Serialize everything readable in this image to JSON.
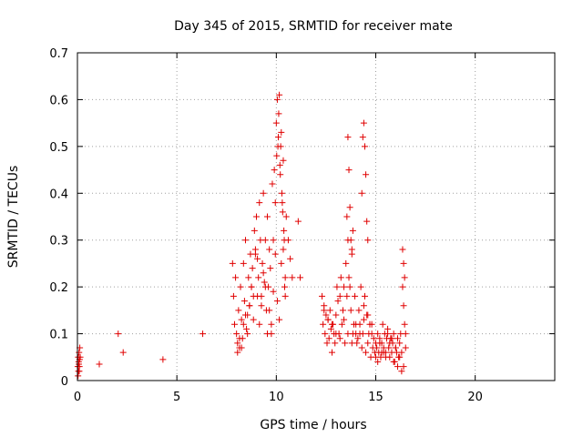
{
  "chart_data": {
    "type": "scatter",
    "title": "Day 345 of 2015, SRMTID for receiver mate",
    "xlabel": "GPS time / hours",
    "ylabel": "SRMTID / TECUs",
    "xlim": [
      0,
      24
    ],
    "ylim": [
      0,
      0.7
    ],
    "xticks": [
      0,
      5,
      10,
      15,
      20
    ],
    "yticks": [
      0,
      0.1,
      0.2,
      0.3,
      0.4,
      0.5,
      0.6,
      0.7
    ],
    "xtick_labels": [
      "0",
      "5",
      "10",
      "15",
      "20"
    ],
    "ytick_labels": [
      "0",
      "0.1",
      "0.2",
      "0.3",
      "0.4",
      "0.5",
      "0.6",
      "0.7"
    ],
    "grid": true,
    "marker": "plus",
    "color": "#e00000",
    "x": [
      0.02,
      0.04,
      0.05,
      0.06,
      0.08,
      0.1,
      0.12,
      0.14,
      0.03,
      0.07,
      0.09,
      0.11,
      1.1,
      2.05,
      2.3,
      4.3,
      6.3,
      7.8,
      7.85,
      7.9,
      7.95,
      8.0,
      8.05,
      8.1,
      8.15,
      8.2,
      8.25,
      8.3,
      8.35,
      8.4,
      8.45,
      8.5,
      8.55,
      8.6,
      8.65,
      8.7,
      8.75,
      8.8,
      8.85,
      8.9,
      8.95,
      9.0,
      9.05,
      9.1,
      9.15,
      9.2,
      9.25,
      9.3,
      9.35,
      9.4,
      9.45,
      9.5,
      9.55,
      9.6,
      9.65,
      9.7,
      9.75,
      9.8,
      9.85,
      9.9,
      9.95,
      10.0,
      10.02,
      10.05,
      10.08,
      10.1,
      10.12,
      10.15,
      10.18,
      10.2,
      10.22,
      10.25,
      10.28,
      10.3,
      10.32,
      10.35,
      10.38,
      10.4,
      10.42,
      10.45,
      10.5,
      10.6,
      10.7,
      10.8,
      11.1,
      11.2,
      8.05,
      8.15,
      8.25,
      8.35,
      8.45,
      8.55,
      8.65,
      8.75,
      8.85,
      8.95,
      9.05,
      9.15,
      9.25,
      9.35,
      9.45,
      9.55,
      9.65,
      9.75,
      9.85,
      9.95,
      10.05,
      10.15,
      10.25,
      10.35,
      10.45,
      12.3,
      12.35,
      12.4,
      12.45,
      12.5,
      12.55,
      12.6,
      12.65,
      12.7,
      12.75,
      12.8,
      12.85,
      12.9,
      12.95,
      13.0,
      13.05,
      13.1,
      13.15,
      13.2,
      13.25,
      13.3,
      13.35,
      13.4,
      13.45,
      13.5,
      13.55,
      13.6,
      13.65,
      13.7,
      13.75,
      13.8,
      13.85,
      13.9,
      13.95,
      14.0,
      14.05,
      14.1,
      14.15,
      14.2,
      14.25,
      14.3,
      14.35,
      14.4,
      14.45,
      14.5,
      14.55,
      14.6,
      14.65,
      14.7,
      14.75,
      14.8,
      14.85,
      14.9,
      14.95,
      13.55,
      13.6,
      13.65,
      13.7,
      13.75,
      13.8,
      13.85,
      14.3,
      14.35,
      14.4,
      14.45,
      14.5,
      14.55,
      14.6,
      15.0,
      15.05,
      15.1,
      15.15,
      15.2,
      15.25,
      15.3,
      15.35,
      15.4,
      15.45,
      15.5,
      15.55,
      15.6,
      15.65,
      15.7,
      15.75,
      15.8,
      15.85,
      15.9,
      15.95,
      16.0,
      16.05,
      16.1,
      16.15,
      16.2,
      16.25,
      16.3,
      16.35,
      16.4,
      16.45,
      16.5,
      12.4,
      12.6,
      12.8,
      13.0,
      13.2,
      13.4,
      13.6,
      13.8,
      14.0,
      14.2,
      14.4,
      14.6,
      14.8,
      15.0,
      15.2,
      15.4,
      15.6,
      15.8,
      16.0,
      16.2,
      16.4,
      15.1,
      15.3,
      15.5,
      15.7,
      15.9,
      16.1,
      16.3,
      16.5,
      16.35,
      16.4,
      16.45
    ],
    "y": [
      0.03,
      0.05,
      0.02,
      0.04,
      0.06,
      0.03,
      0.07,
      0.05,
      0.01,
      0.035,
      0.02,
      0.045,
      0.035,
      0.1,
      0.06,
      0.045,
      0.1,
      0.25,
      0.18,
      0.12,
      0.22,
      0.1,
      0.08,
      0.15,
      0.07,
      0.2,
      0.13,
      0.09,
      0.25,
      0.17,
      0.3,
      0.11,
      0.14,
      0.22,
      0.16,
      0.27,
      0.2,
      0.24,
      0.18,
      0.32,
      0.28,
      0.35,
      0.26,
      0.22,
      0.38,
      0.3,
      0.18,
      0.25,
      0.4,
      0.21,
      0.3,
      0.15,
      0.35,
      0.2,
      0.28,
      0.24,
      0.1,
      0.42,
      0.3,
      0.45,
      0.38,
      0.55,
      0.48,
      0.6,
      0.5,
      0.52,
      0.57,
      0.61,
      0.46,
      0.44,
      0.5,
      0.53,
      0.4,
      0.38,
      0.36,
      0.47,
      0.32,
      0.3,
      0.2,
      0.22,
      0.35,
      0.3,
      0.26,
      0.22,
      0.34,
      0.22,
      0.06,
      0.09,
      0.07,
      0.12,
      0.14,
      0.1,
      0.16,
      0.2,
      0.13,
      0.27,
      0.18,
      0.12,
      0.16,
      0.23,
      0.2,
      0.1,
      0.15,
      0.12,
      0.19,
      0.27,
      0.17,
      0.13,
      0.25,
      0.28,
      0.18,
      0.18,
      0.12,
      0.16,
      0.1,
      0.14,
      0.08,
      0.13,
      0.09,
      0.15,
      0.11,
      0.06,
      0.12,
      0.1,
      0.08,
      0.14,
      0.2,
      0.17,
      0.1,
      0.18,
      0.22,
      0.12,
      0.15,
      0.2,
      0.08,
      0.25,
      0.18,
      0.3,
      0.22,
      0.2,
      0.15,
      0.27,
      0.1,
      0.12,
      0.18,
      0.1,
      0.08,
      0.09,
      0.15,
      0.12,
      0.2,
      0.07,
      0.1,
      0.13,
      0.18,
      0.06,
      0.14,
      0.08,
      0.1,
      0.12,
      0.05,
      0.1,
      0.07,
      0.09,
      0.06,
      0.35,
      0.52,
      0.45,
      0.37,
      0.3,
      0.28,
      0.32,
      0.4,
      0.52,
      0.55,
      0.5,
      0.44,
      0.34,
      0.3,
      0.08,
      0.07,
      0.1,
      0.06,
      0.09,
      0.05,
      0.08,
      0.12,
      0.07,
      0.1,
      0.06,
      0.09,
      0.11,
      0.07,
      0.05,
      0.09,
      0.06,
      0.08,
      0.1,
      0.04,
      0.07,
      0.06,
      0.09,
      0.05,
      0.08,
      0.1,
      0.06,
      0.2,
      0.16,
      0.12,
      0.1,
      0.15,
      0.13,
      0.12,
      0.1,
      0.09,
      0.13,
      0.1,
      0.08,
      0.12,
      0.1,
      0.16,
      0.14,
      0.12,
      0.05,
      0.08,
      0.06,
      0.1,
      0.09,
      0.07,
      0.05,
      0.03,
      0.04,
      0.06,
      0.05,
      0.08,
      0.04,
      0.03,
      0.02,
      0.07,
      0.28,
      0.25,
      0.22
    ]
  }
}
